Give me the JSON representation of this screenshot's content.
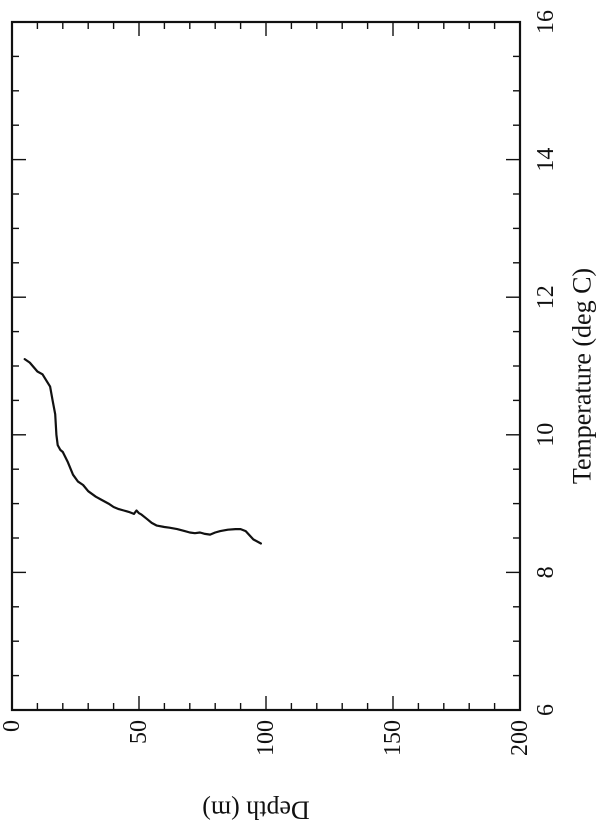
{
  "chart_data": {
    "type": "line",
    "title": "",
    "xlabel": "Depth (m)",
    "ylabel": "Temperature (deg C)",
    "xlim": [
      0,
      200
    ],
    "ylim": [
      6,
      16
    ],
    "x_ticks": [
      "0",
      "50",
      "100",
      "150",
      "200"
    ],
    "y_ticks": [
      "6",
      "8",
      "10",
      "12",
      "14",
      "16"
    ],
    "grid": false,
    "legend": "none",
    "orientation": "rotated-90",
    "series": [
      {
        "x": [
          5,
          7,
          10,
          12,
          15,
          16,
          17,
          17.5,
          18,
          19,
          20,
          22,
          24,
          26,
          28,
          30,
          33,
          35,
          38,
          40,
          42,
          44,
          46,
          48,
          49,
          50,
          51,
          53,
          55,
          57,
          60,
          62,
          65,
          68,
          70,
          72,
          74,
          76,
          78,
          80,
          82,
          85,
          88,
          90,
          92,
          95,
          98
        ],
        "values": [
          11.1,
          11.05,
          10.92,
          10.88,
          10.7,
          10.5,
          10.3,
          10.0,
          9.85,
          9.78,
          9.75,
          9.6,
          9.42,
          9.32,
          9.27,
          9.18,
          9.1,
          9.06,
          9.0,
          8.95,
          8.92,
          8.9,
          8.88,
          8.85,
          8.9,
          8.86,
          8.84,
          8.78,
          8.72,
          8.68,
          8.66,
          8.65,
          8.63,
          8.6,
          8.58,
          8.57,
          8.58,
          8.56,
          8.55,
          8.58,
          8.6,
          8.62,
          8.63,
          8.63,
          8.6,
          8.48,
          8.42
        ]
      }
    ],
    "colors": {
      "line": "#111111",
      "axis": "#111111",
      "background": "#ffffff"
    }
  }
}
